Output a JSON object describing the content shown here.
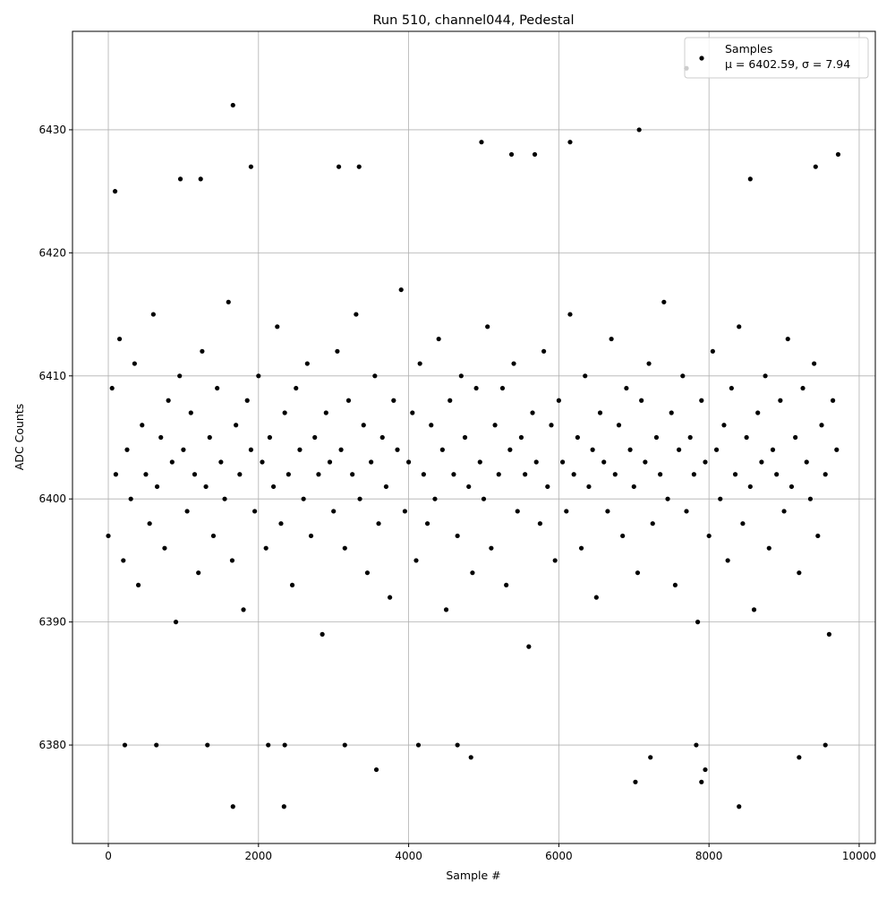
{
  "chart_data": {
    "type": "scatter",
    "title": "Run 510, channel044, Pedestal",
    "xlabel": "Sample #",
    "ylabel": "ADC Counts",
    "xlim": [
      -477,
      10215
    ],
    "ylim": [
      6372,
      6438
    ],
    "xticks": [
      0,
      2000,
      4000,
      6000,
      8000,
      10000
    ],
    "yticks": [
      6380,
      6390,
      6400,
      6410,
      6420,
      6430
    ],
    "grid": true,
    "legend_placement": "upper-right",
    "marker_color": "#000000",
    "series": [
      {
        "name": "Samples",
        "legend_stats": "μ = 6402.59, σ = 7.94",
        "x_step": 50,
        "y": [
          6397,
          6409,
          6402,
          6413,
          6395,
          6404,
          6400,
          6411,
          6393,
          6406,
          6402,
          6398,
          6415,
          6401,
          6405,
          6396,
          6408,
          6403,
          6390,
          6410,
          6404,
          6399,
          6407,
          6402,
          6394,
          6412,
          6401,
          6405,
          6397,
          6409,
          6403,
          6400,
          6416,
          6395,
          6406,
          6402,
          6391,
          6408,
          6404,
          6399,
          6410,
          6403,
          6396,
          6405,
          6401,
          6414,
          6398,
          6407,
          6402,
          6393,
          6409,
          6404,
          6400,
          6411,
          6397,
          6405,
          6402,
          6389,
          6407,
          6403,
          6399,
          6412,
          6404,
          6396,
          6408,
          6402,
          6415,
          6400,
          6406,
          6394,
          6403,
          6410,
          6398,
          6405,
          6401,
          6392,
          6408,
          6404,
          6417,
          6399,
          6403,
          6407,
          6395,
          6411,
          6402,
          6398,
          6406,
          6400,
          6413,
          6404,
          6391,
          6408,
          6402,
          6397,
          6410,
          6405,
          6401,
          6394,
          6409,
          6403,
          6400,
          6414,
          6396,
          6406,
          6402,
          6409,
          6393,
          6404,
          6411,
          6399,
          6405,
          6402,
          6388,
          6407,
          6403,
          6398,
          6412,
          6401,
          6406,
          6395,
          6408,
          6403,
          6399,
          6415,
          6402,
          6405,
          6396,
          6410,
          6401,
          6404,
          6392,
          6407,
          6403,
          6399,
          6413,
          6402,
          6406,
          6397,
          6409,
          6404,
          6401,
          6394,
          6408,
          6403,
          6411,
          6398,
          6405,
          6402,
          6416,
          6400,
          6407,
          6393,
          6404,
          6410,
          6399,
          6405,
          6402,
          6390,
          6408,
          6403,
          6397,
          6412,
          6404,
          6400,
          6406,
          6395,
          6409,
          6402,
          6414,
          6398,
          6405,
          6401,
          6391,
          6407,
          6403,
          6410,
          6396,
          6404,
          6402,
          6408,
          6399,
          6413,
          6401,
          6405,
          6394,
          6409,
          6403,
          6400,
          6411,
          6397,
          6406,
          6402,
          6389,
          6408,
          6404
        ],
        "outliers": [
          [
            1660,
            6432
          ],
          [
            1660,
            6375
          ],
          [
            2340,
            6375
          ],
          [
            8400,
            6375
          ],
          [
            7070,
            6430
          ],
          [
            3570,
            6378
          ],
          [
            4830,
            6379
          ],
          [
            7220,
            6379
          ],
          [
            9200,
            6379
          ],
          [
            7020,
            6377
          ],
          [
            7900,
            6377
          ],
          [
            7950,
            6378
          ],
          [
            4970,
            6429
          ],
          [
            6150,
            6429
          ],
          [
            7700,
            6435
          ],
          [
            9720,
            6428
          ],
          [
            220,
            6380
          ],
          [
            640,
            6380
          ],
          [
            1320,
            6380
          ],
          [
            2130,
            6380
          ],
          [
            2350,
            6380
          ],
          [
            3150,
            6380
          ],
          [
            4130,
            6380
          ],
          [
            4650,
            6380
          ],
          [
            9550,
            6380
          ],
          [
            7830,
            6380
          ],
          [
            960,
            6426
          ],
          [
            1230,
            6426
          ],
          [
            3070,
            6427
          ],
          [
            3340,
            6427
          ],
          [
            5370,
            6428
          ],
          [
            5680,
            6428
          ],
          [
            8550,
            6426
          ],
          [
            9420,
            6427
          ],
          [
            1900,
            6427
          ],
          [
            90,
            6425
          ]
        ]
      }
    ]
  }
}
